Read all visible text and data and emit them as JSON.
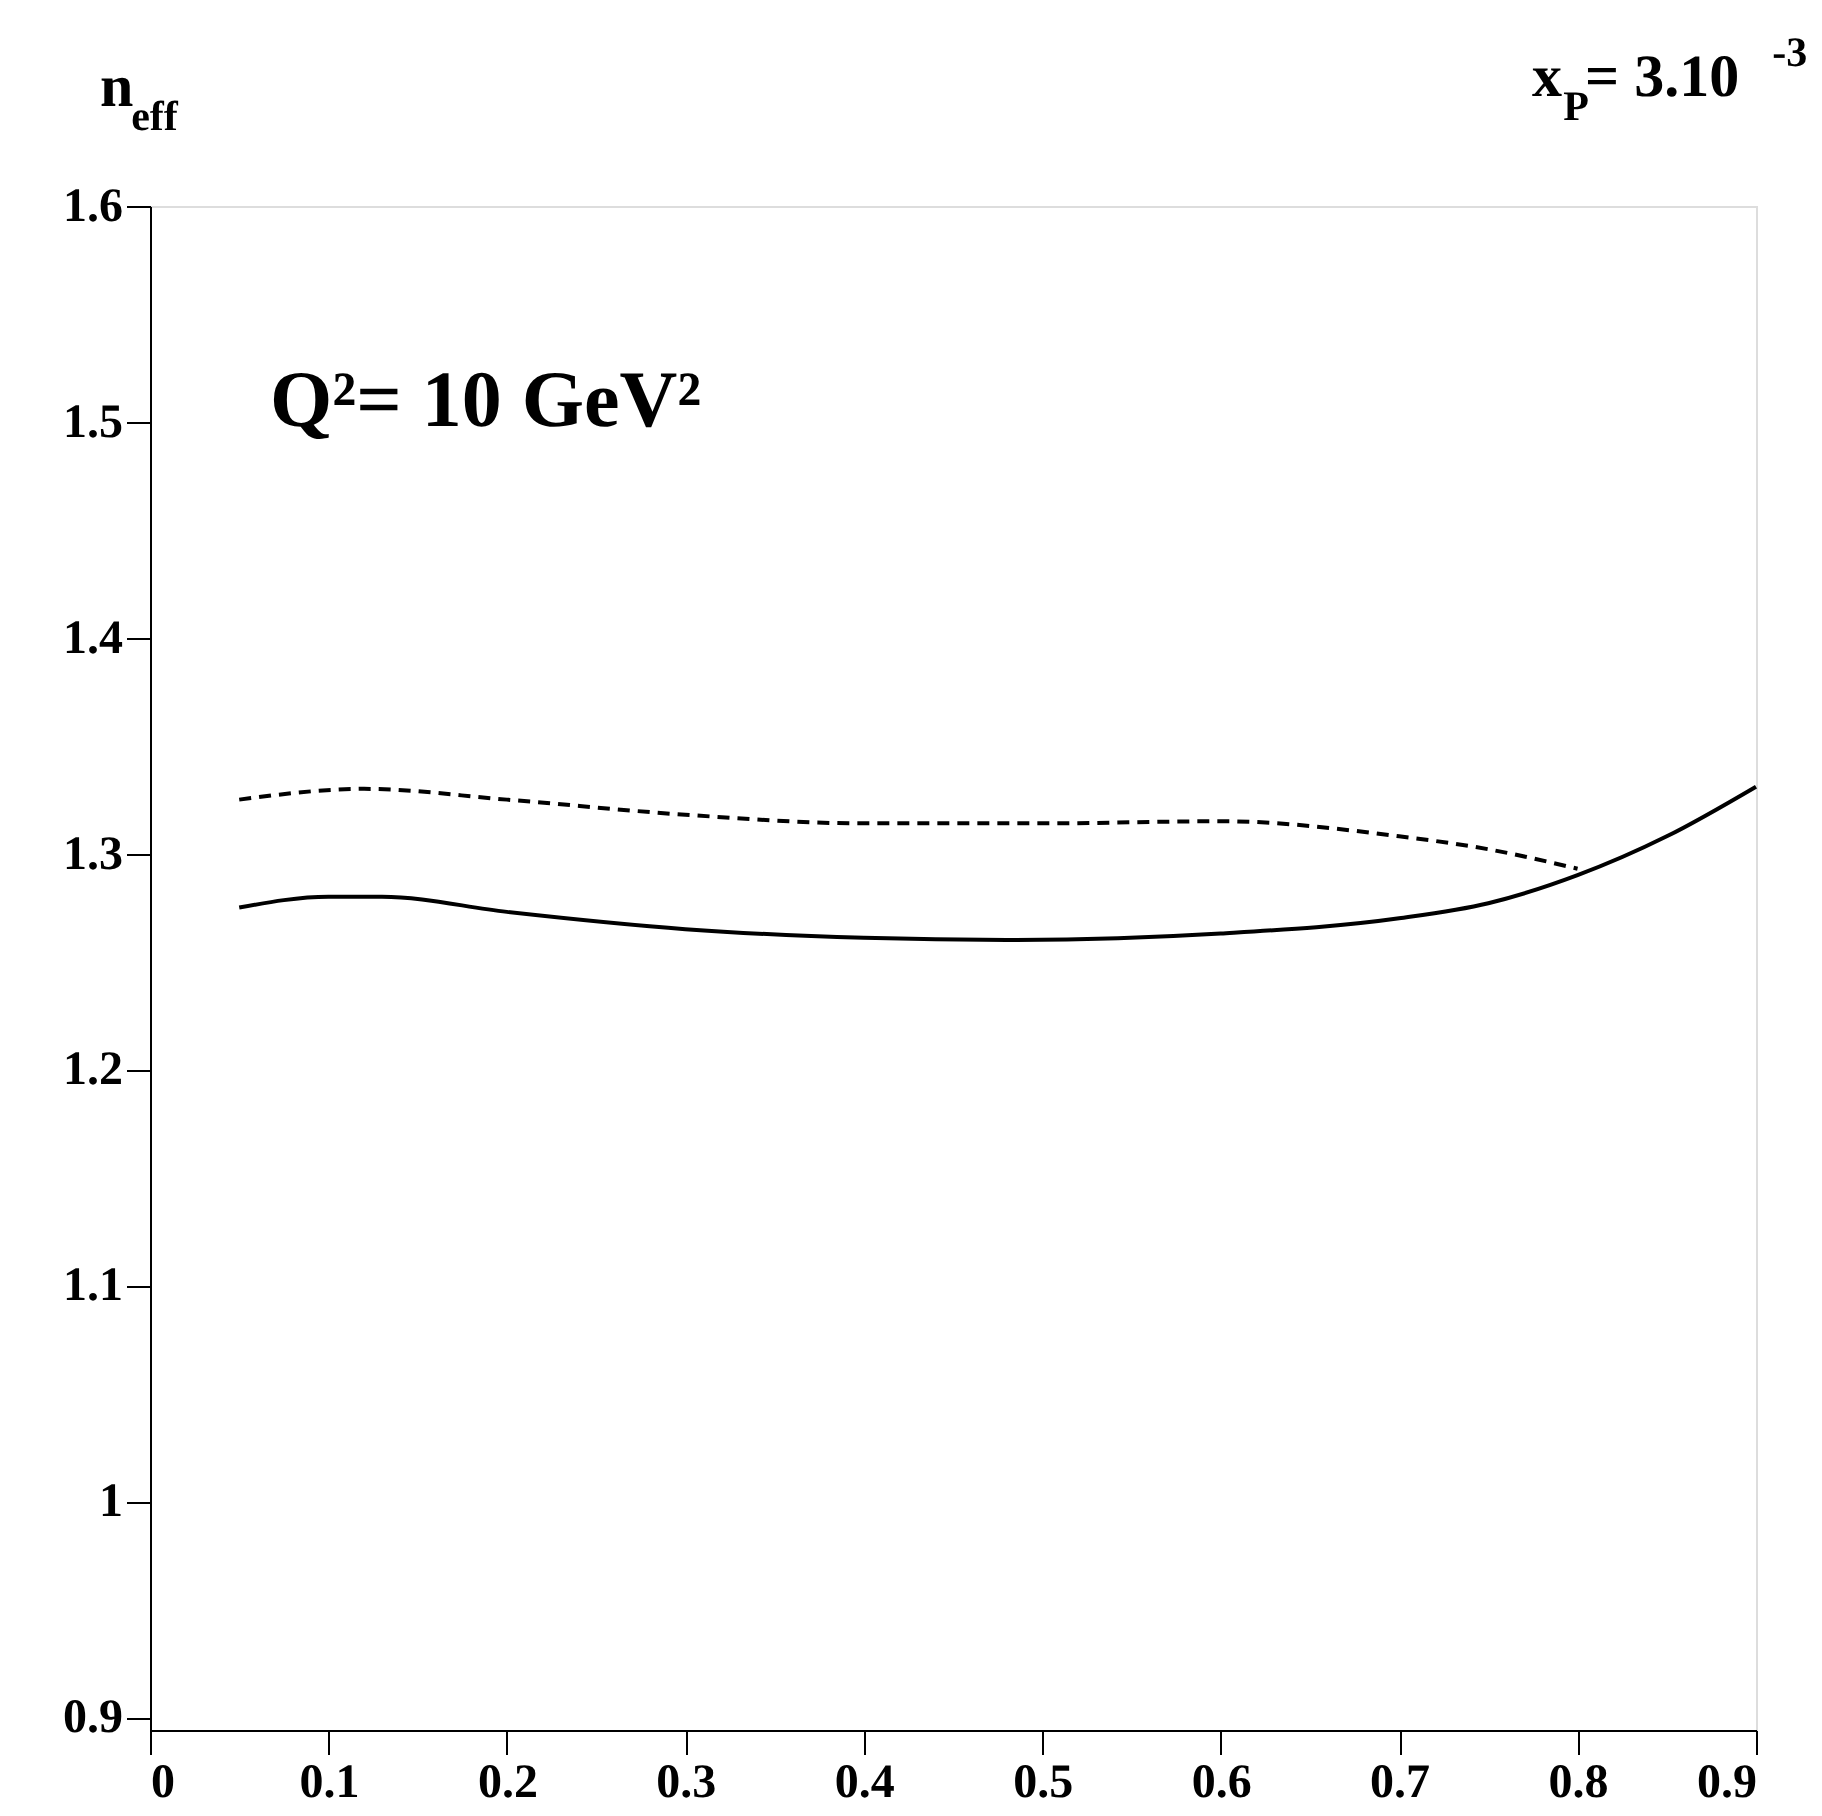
{
  "chart_data": {
    "type": "line",
    "ylabel": "n$_{eff}$",
    "title": "x$_{P}$= 3.10$^{-3}$",
    "annotations": [
      "Q²= 10 GeV²"
    ],
    "xlim": [
      0,
      0.9
    ],
    "ylim": [
      0.894,
      1.6
    ],
    "xticks": [
      0,
      0.1,
      0.2,
      0.3,
      0.4,
      0.5,
      0.6,
      0.7,
      0.8,
      0.9
    ],
    "yticks": [
      0.9,
      1,
      1.1,
      1.2,
      1.3,
      1.4,
      1.5,
      1.6
    ],
    "grid": false,
    "marker": "none",
    "series": [
      {
        "color": "#000000",
        "line_style": "solid",
        "x": [
          0.05,
          0.1,
          0.13,
          0.2,
          0.3,
          0.4,
          0.48,
          0.6,
          0.7,
          0.75,
          0.8,
          0.85,
          0.9
        ],
        "values": [
          1.275,
          1.28,
          1.28,
          1.273,
          1.265,
          1.261,
          1.26,
          1.263,
          1.27,
          1.277,
          1.29,
          1.308,
          1.331
        ]
      },
      {
        "color": "#000000",
        "line_style": "dashed",
        "x": [
          0.05,
          0.12,
          0.2,
          0.3,
          0.4,
          0.5,
          0.6,
          0.7,
          0.75,
          0.8
        ],
        "values": [
          1.325,
          1.33,
          1.325,
          1.318,
          1.314,
          1.314,
          1.315,
          1.308,
          1.302,
          1.293
        ]
      }
    ]
  }
}
